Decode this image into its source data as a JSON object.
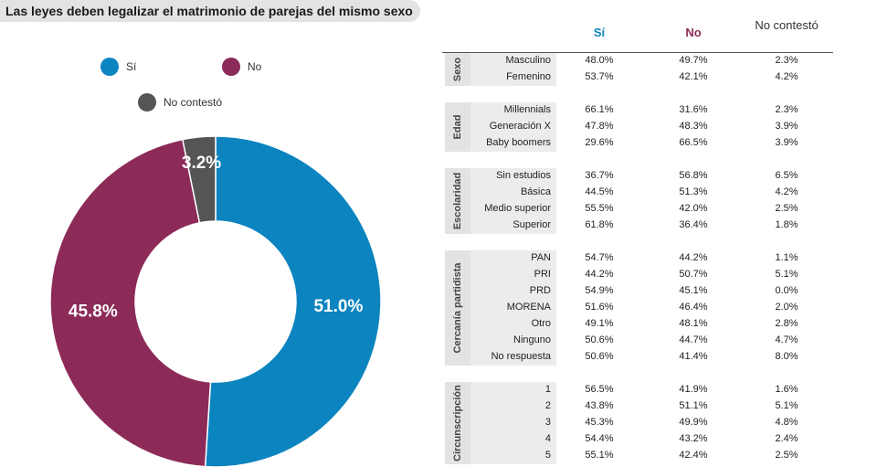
{
  "title": "Las leyes deben legalizar el matrimonio de parejas del mismo sexo",
  "colors": {
    "si": "#0c84bf",
    "no": "#8c2a58",
    "nc": "#555555",
    "band": "#e3e3e3"
  },
  "legend": [
    {
      "label": "Sí",
      "color": "#0c84bf"
    },
    {
      "label": "No",
      "color": "#8c2a58"
    },
    {
      "label": "No contestó",
      "color": "#555555"
    }
  ],
  "chart_data": [
    {
      "type": "pie",
      "variant": "donut",
      "categories": [
        "Sí",
        "No",
        "No contestó"
      ],
      "values": [
        51.0,
        45.8,
        3.2
      ],
      "labels": [
        "51.0%",
        "45.8%",
        "3.2%"
      ],
      "unit": "%"
    },
    {
      "type": "table",
      "columns": [
        "Sí",
        "No",
        "No contestó"
      ],
      "groups": [
        {
          "name": "Sexo",
          "rows": [
            {
              "label": "Masculino",
              "values": [
                "48.0%",
                "49.7%",
                "2.3%"
              ]
            },
            {
              "label": "Femenino",
              "values": [
                "53.7%",
                "42.1%",
                "4.2%"
              ]
            }
          ]
        },
        {
          "name": "Edad",
          "rows": [
            {
              "label": "Millennials",
              "values": [
                "66.1%",
                "31.6%",
                "2.3%"
              ]
            },
            {
              "label": "Generación X",
              "values": [
                "47.8%",
                "48.3%",
                "3.9%"
              ]
            },
            {
              "label": "Baby boomers",
              "values": [
                "29.6%",
                "66.5%",
                "3.9%"
              ]
            }
          ]
        },
        {
          "name": "Escolaridad",
          "rows": [
            {
              "label": "Sin estudios",
              "values": [
                "36.7%",
                "56.8%",
                "6.5%"
              ]
            },
            {
              "label": "Básica",
              "values": [
                "44.5%",
                "51.3%",
                "4.2%"
              ]
            },
            {
              "label": "Medio superior",
              "values": [
                "55.5%",
                "42.0%",
                "2.5%"
              ]
            },
            {
              "label": "Superior",
              "values": [
                "61.8%",
                "36.4%",
                "1.8%"
              ]
            }
          ]
        },
        {
          "name": "Cercanía partidista",
          "rows": [
            {
              "label": "PAN",
              "values": [
                "54.7%",
                "44.2%",
                "1.1%"
              ]
            },
            {
              "label": "PRI",
              "values": [
                "44.2%",
                "50.7%",
                "5.1%"
              ]
            },
            {
              "label": "PRD",
              "values": [
                "54.9%",
                "45.1%",
                "0.0%"
              ]
            },
            {
              "label": "MORENA",
              "values": [
                "51.6%",
                "46.4%",
                "2.0%"
              ]
            },
            {
              "label": "Otro",
              "values": [
                "49.1%",
                "48.1%",
                "2.8%"
              ]
            },
            {
              "label": "Ninguno",
              "values": [
                "50.6%",
                "44.7%",
                "4.7%"
              ]
            },
            {
              "label": "No respuesta",
              "values": [
                "50.6%",
                "41.4%",
                "8.0%"
              ]
            }
          ]
        },
        {
          "name": "Circunscripción",
          "rows": [
            {
              "label": "1",
              "values": [
                "56.5%",
                "41.9%",
                "1.6%"
              ]
            },
            {
              "label": "2",
              "values": [
                "43.8%",
                "51.1%",
                "5.1%"
              ]
            },
            {
              "label": "3",
              "values": [
                "45.3%",
                "49.9%",
                "4.8%"
              ]
            },
            {
              "label": "4",
              "values": [
                "54.4%",
                "43.2%",
                "2.4%"
              ]
            },
            {
              "label": "5",
              "values": [
                "55.1%",
                "42.4%",
                "2.5%"
              ]
            }
          ]
        }
      ]
    }
  ]
}
